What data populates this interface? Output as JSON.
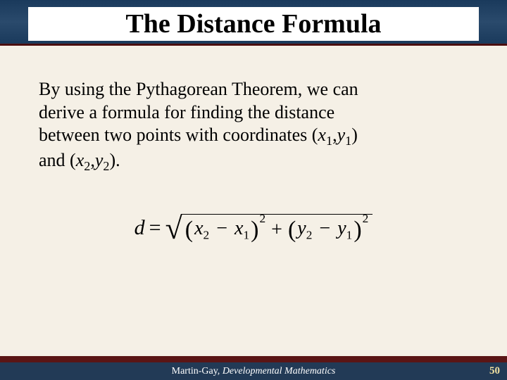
{
  "title": "The Distance Formula",
  "paragraph": {
    "line1": "By using the Pythagorean Theorem, we can",
    "line2": "derive a formula for finding the distance",
    "line3_pre": "between two points with coordinates (",
    "x1": "x",
    "s1": "1",
    "c1": ",",
    "y1": "y",
    "s1b": "1",
    "line3_post": ")",
    "line4_pre": "and (",
    "x2": "x",
    "s2": "2",
    "c2": ",",
    "y2": "y",
    "s2b": "2",
    "line4_post": ")."
  },
  "formula": {
    "lhs": "d",
    "eq": "=",
    "x2": "x",
    "x2sub": "2",
    "minus1": "−",
    "x1": "x",
    "x1sub": "1",
    "exp1": "2",
    "plus": "+",
    "y2": "y",
    "y2sub": "2",
    "minus2": "−",
    "y1": "y",
    "y1sub": "1",
    "exp2": "2"
  },
  "footer": {
    "author": "Martin-Gay, ",
    "book": "Developmental Mathematics",
    "page": "50"
  },
  "colors": {
    "header_bg": "#1a3a5c",
    "maroon_bar": "#5a1515",
    "body_bg": "#f5f0e6",
    "footer_bg": "#223a56",
    "page_num_color": "#f0e0a0"
  }
}
